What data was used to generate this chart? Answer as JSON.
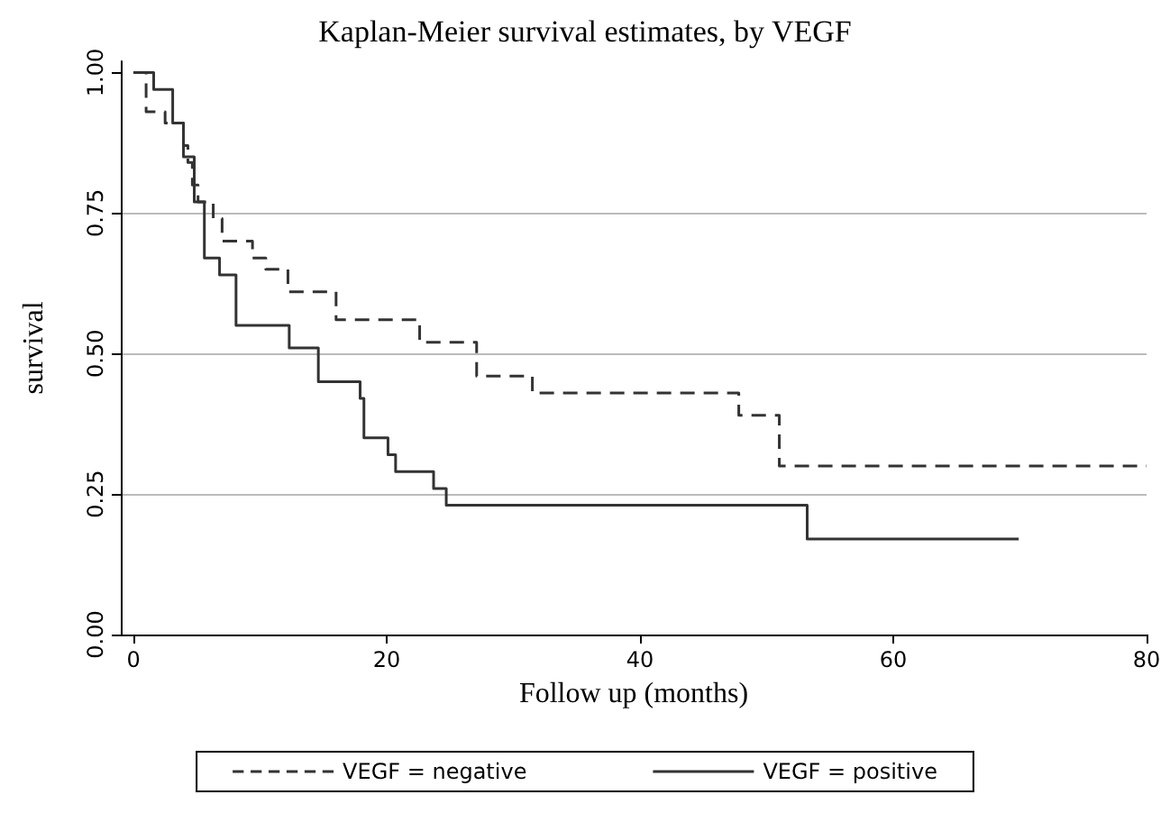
{
  "chart_data": {
    "type": "step",
    "title": "Kaplan-Meier survival estimates, by VEGF",
    "xlabel": "Follow up (months)",
    "ylabel": "survival",
    "xlim": [
      -1,
      80
    ],
    "ylim": [
      0,
      1.02
    ],
    "xticks": [
      0,
      20,
      40,
      60,
      80
    ],
    "yticks": [
      {
        "value": 0,
        "label": "0.00"
      },
      {
        "value": 0.25,
        "label": "0.25"
      },
      {
        "value": 0.5,
        "label": "0.50"
      },
      {
        "value": 0.75,
        "label": "0.75"
      },
      {
        "value": 1,
        "label": "1.00"
      }
    ],
    "grid": "y",
    "legend": "bottom",
    "marker": "none",
    "series": [
      {
        "name": "VEGF = negative",
        "color": "#333333",
        "line_style": "dashed",
        "x": [
          0,
          1.0,
          2.5,
          3.95,
          4.3,
          4.65,
          5.1,
          6.3,
          7.0,
          9.4,
          10.45,
          12.2,
          16.0,
          22.6,
          27.1,
          31.5,
          47.8,
          51.0,
          80
        ],
        "values": [
          1,
          0.93,
          0.91,
          0.87,
          0.84,
          0.8,
          0.77,
          0.74,
          0.7,
          0.67,
          0.65,
          0.61,
          0.56,
          0.52,
          0.46,
          0.43,
          0.39,
          0.3,
          0.3
        ]
      },
      {
        "name": "VEGF = positive",
        "color": "#333333",
        "line_style": "solid",
        "x": [
          0,
          1.6,
          3.1,
          3.95,
          4.8,
          5.6,
          6.8,
          8.1,
          12.3,
          14.6,
          17.9,
          18.2,
          20.1,
          20.7,
          23.7,
          24.7,
          53.2,
          69.9
        ],
        "values": [
          1,
          0.97,
          0.91,
          0.85,
          0.77,
          0.67,
          0.64,
          0.55,
          0.51,
          0.45,
          0.42,
          0.35,
          0.32,
          0.29,
          0.26,
          0.23,
          0.17,
          0.17
        ]
      }
    ]
  }
}
